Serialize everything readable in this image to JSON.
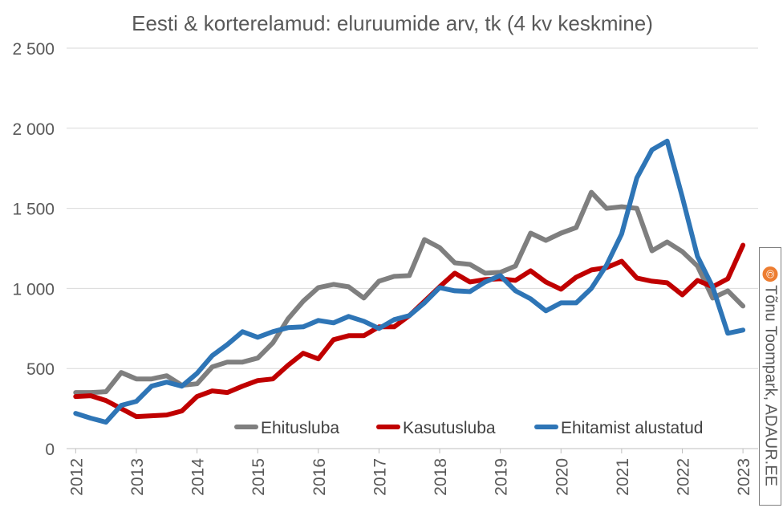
{
  "chart_data": {
    "type": "line",
    "title": "Eesti & korterelamud: eluruumide arv, tk (4 kv keskmine)",
    "x": [
      2012.0,
      2012.25,
      2012.5,
      2012.75,
      2013.0,
      2013.25,
      2013.5,
      2013.75,
      2014.0,
      2014.25,
      2014.5,
      2014.75,
      2015.0,
      2015.25,
      2015.5,
      2015.75,
      2016.0,
      2016.25,
      2016.5,
      2016.75,
      2017.0,
      2017.25,
      2017.5,
      2017.75,
      2018.0,
      2018.25,
      2018.5,
      2018.75,
      2019.0,
      2019.25,
      2019.5,
      2019.75,
      2020.0,
      2020.25,
      2020.5,
      2020.75,
      2021.0,
      2021.25,
      2021.5,
      2021.75,
      2022.0,
      2022.25,
      2022.5,
      2022.75,
      2023.0
    ],
    "xticks": [
      "2012",
      "2013",
      "2014",
      "2015",
      "2016",
      "2017",
      "2018",
      "2019",
      "2020",
      "2021",
      "2022",
      "2023"
    ],
    "yticks": [
      "0",
      "500",
      "1 000",
      "1 500",
      "2 000",
      "2 500"
    ],
    "ylim": [
      0,
      2500
    ],
    "grid": true,
    "legend_position": "bottom",
    "series": [
      {
        "name": "Ehitusluba",
        "color": "#7f7f7f",
        "values": [
          350,
          350,
          355,
          475,
          435,
          435,
          455,
          395,
          405,
          510,
          540,
          540,
          565,
          660,
          810,
          920,
          1005,
          1025,
          1010,
          940,
          1045,
          1075,
          1080,
          1305,
          1255,
          1160,
          1150,
          1095,
          1100,
          1140,
          1345,
          1300,
          1345,
          1380,
          1600,
          1500,
          1510,
          1500,
          1235,
          1290,
          1230,
          1140,
          940,
          985,
          890
        ]
      },
      {
        "name": "Kasutusluba",
        "color": "#c00000",
        "values": [
          325,
          330,
          300,
          250,
          200,
          205,
          210,
          235,
          325,
          360,
          350,
          390,
          425,
          435,
          520,
          595,
          560,
          680,
          705,
          705,
          760,
          760,
          830,
          920,
          1010,
          1095,
          1040,
          1055,
          1060,
          1050,
          1110,
          1040,
          995,
          1070,
          1115,
          1130,
          1170,
          1065,
          1045,
          1035,
          960,
          1050,
          1010,
          1060,
          1270
        ]
      },
      {
        "name": "Ehitamist alustatud",
        "color": "#2e75b6",
        "values": [
          220,
          190,
          165,
          270,
          295,
          390,
          415,
          390,
          470,
          580,
          650,
          730,
          695,
          730,
          755,
          760,
          800,
          785,
          825,
          795,
          750,
          805,
          830,
          910,
          1005,
          985,
          980,
          1040,
          1080,
          985,
          935,
          860,
          910,
          910,
          1000,
          1145,
          1340,
          1690,
          1865,
          1920,
          1570,
          1200,
          1010,
          720,
          740
        ]
      }
    ]
  },
  "credit": {
    "icon": "copyright-icon",
    "symbol": "©",
    "text": "Tõnu Toompark, ADAUR.EE"
  }
}
